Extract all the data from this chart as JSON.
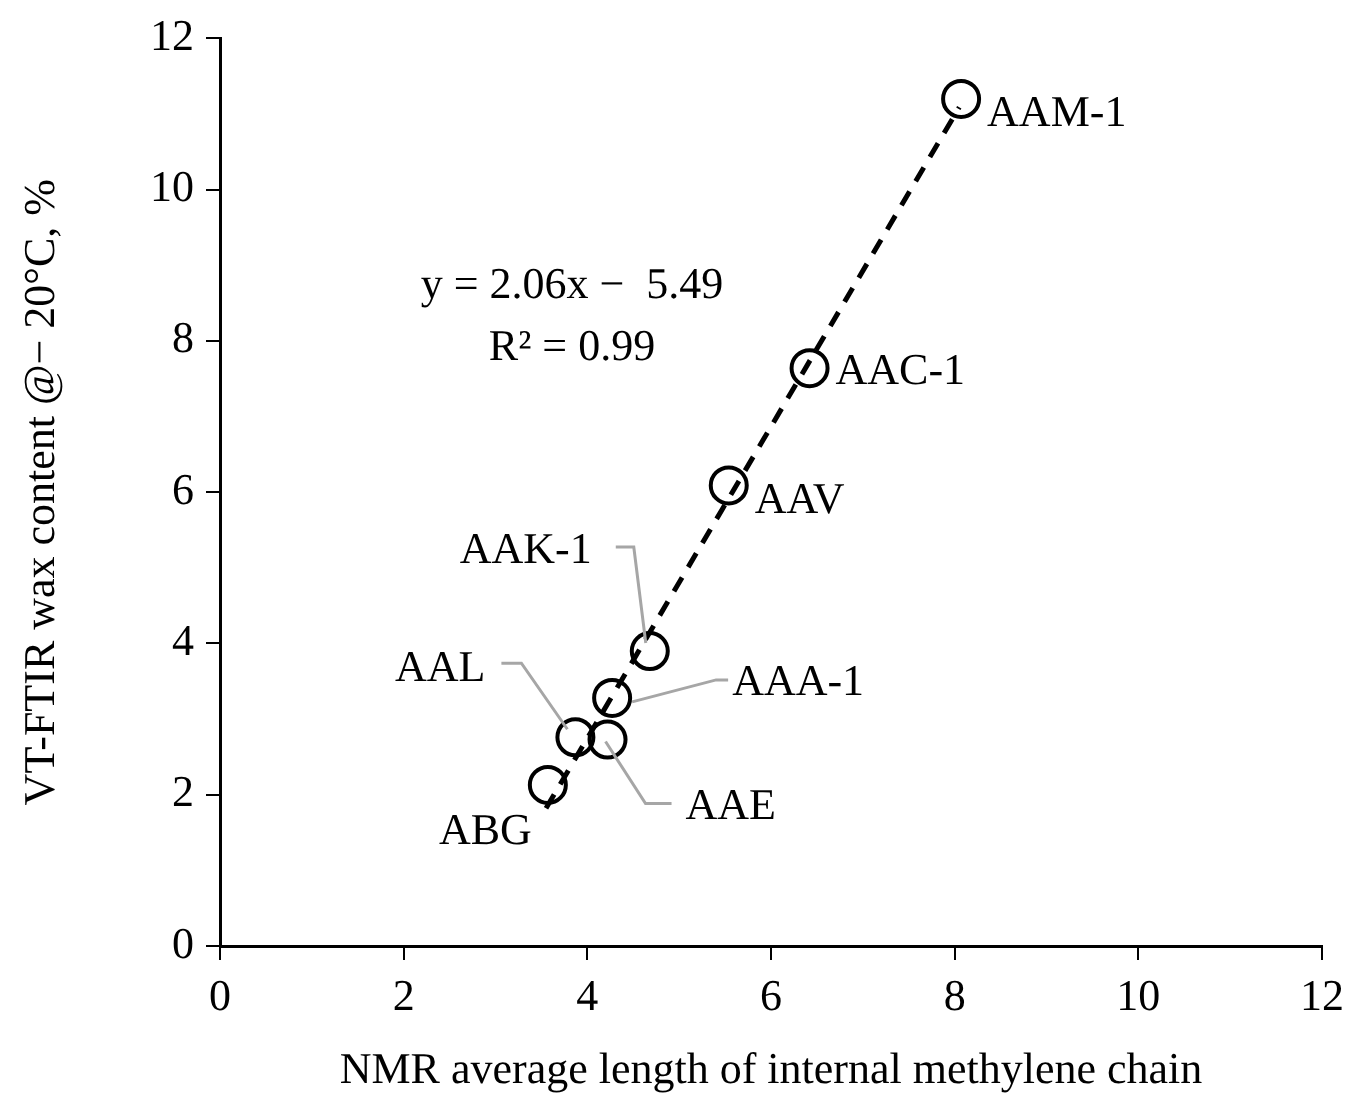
{
  "chart_data": {
    "type": "scatter",
    "xlabel": "NMR average length of internal methylene chain",
    "ylabel": "VT-FTIR wax content @− 20°C, %",
    "x": [
      8.07,
      6.42,
      5.54,
      4.68,
      4.27,
      3.87,
      4.22,
      3.57
    ],
    "series": [
      {
        "color": "#000000",
        "values": [
          11.2,
          7.64,
          6.09,
          3.9,
          3.28,
          2.76,
          2.73,
          2.13
        ],
        "marker": "circle"
      },
      {
        "type": "line",
        "x": [
          3.55,
          8.05
        ],
        "values": [
          1.82,
          11.09
        ],
        "color": "#000000",
        "line_style": "dashed",
        "marker": "none"
      }
    ],
    "xlim": [
      0,
      12
    ],
    "xticks": [
      0,
      2,
      4,
      6,
      8,
      10,
      12
    ],
    "ylim": [
      0,
      12
    ],
    "yticks": [
      0,
      2,
      4,
      6,
      8,
      10,
      12
    ],
    "grid": false,
    "legend": false,
    "annotations": [
      {
        "text": "AAM-1",
        "x": 8.07,
        "y": 11.2
      },
      {
        "text": "AAC-1",
        "x": 6.42,
        "y": 7.64
      },
      {
        "text": "AAV",
        "x": 5.54,
        "y": 6.09
      },
      {
        "text": "AAK-1",
        "x": 4.68,
        "y": 3.9
      },
      {
        "text": "AAA-1",
        "x": 4.27,
        "y": 3.28
      },
      {
        "text": "AAL",
        "x": 3.87,
        "y": 2.76
      },
      {
        "text": "AAE",
        "x": 4.22,
        "y": 2.73
      },
      {
        "text": "ABG",
        "x": 3.57,
        "y": 2.13
      },
      "y = 2.06x −  5.49",
      "R² = 0.99"
    ]
  }
}
